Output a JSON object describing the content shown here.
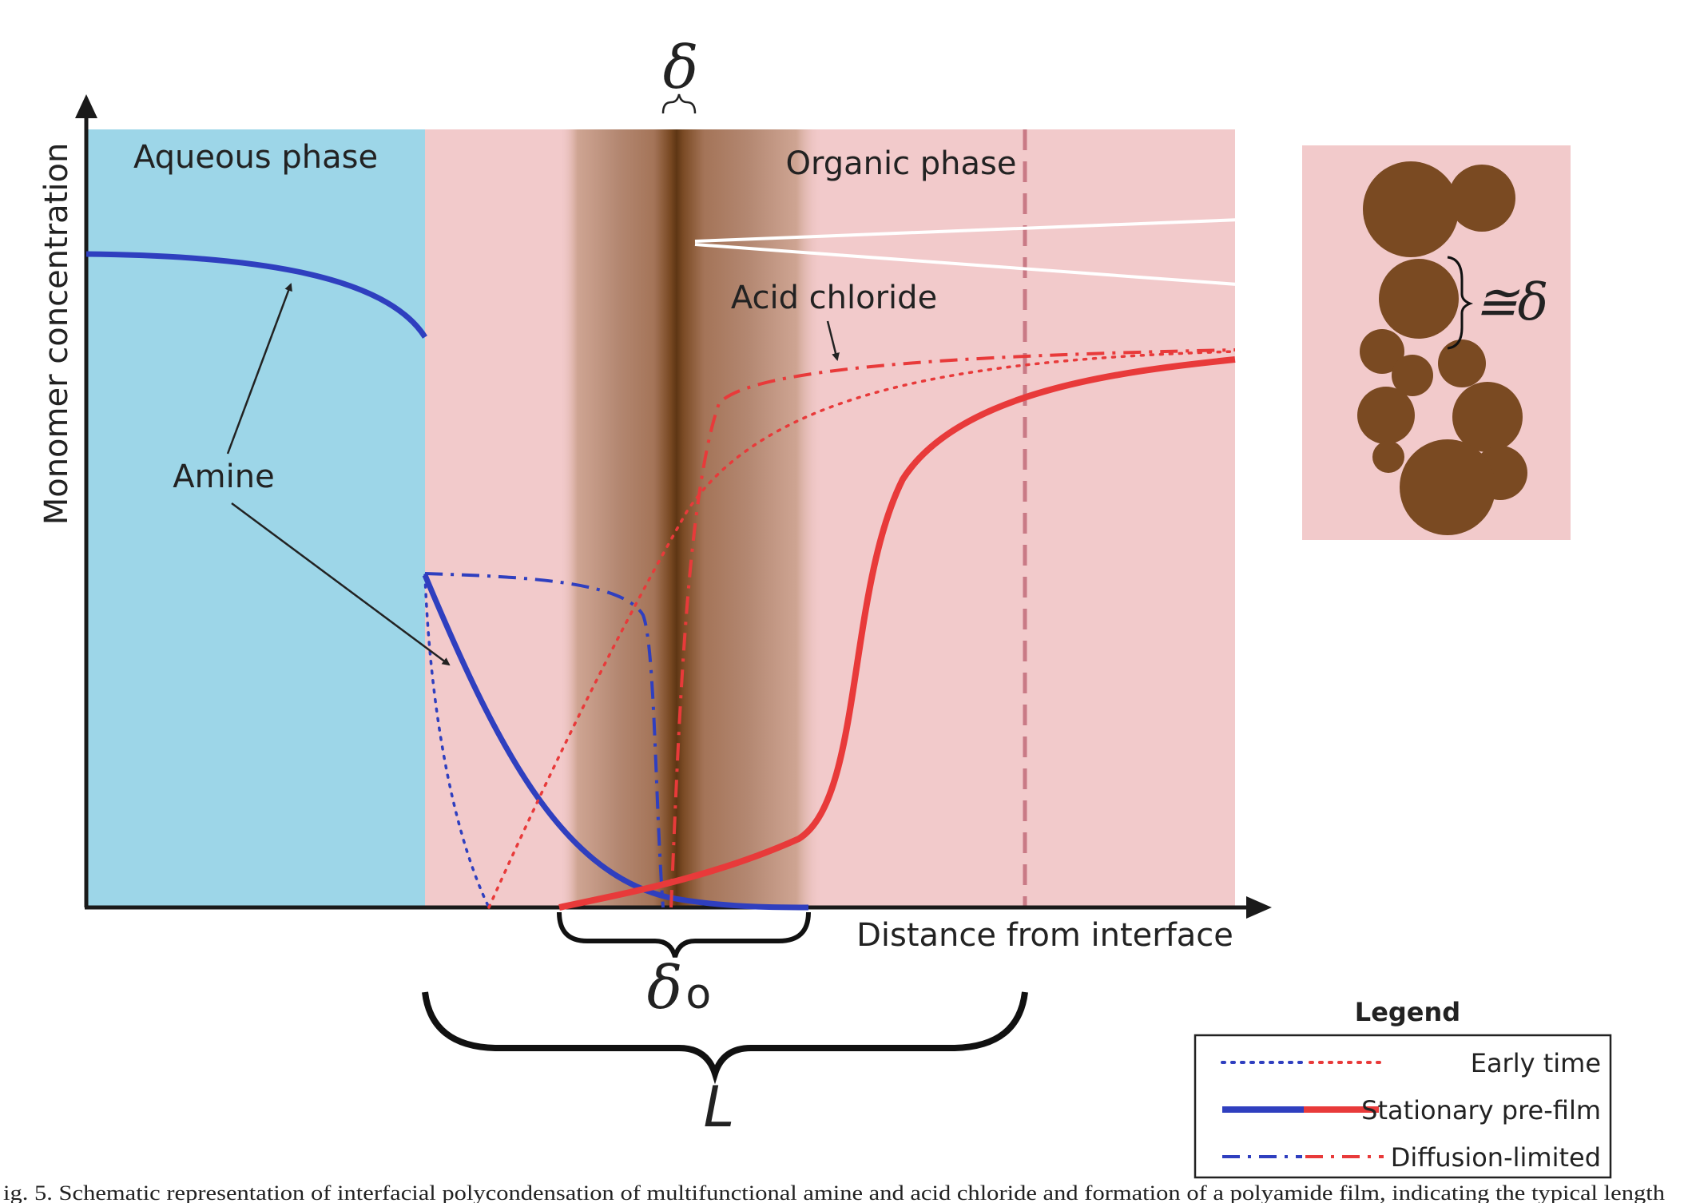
{
  "axes": {
    "y_label": "Monomer concentration",
    "x_label": "Distance from interface"
  },
  "regions": {
    "aqueous": "Aqueous phase",
    "organic": "Organic phase"
  },
  "labels": {
    "amine": "Amine",
    "acid_chloride": "Acid chloride",
    "delta": "δ",
    "delta0": "δ",
    "delta0_sub": "o",
    "length": "L",
    "approx_delta": "≅δ"
  },
  "legend": {
    "title": "Legend",
    "items": [
      {
        "label": "Early time",
        "style": "dotted"
      },
      {
        "label": "Stationary pre-film",
        "style": "solid"
      },
      {
        "label": "Diffusion-limited",
        "style": "dash-dot"
      }
    ]
  },
  "caption": "ig. 5. Schematic representation of interfacial polycondensation of multifunctional amine and acid chloride and formation of a polyamide film, indicating the typical length",
  "colors": {
    "aqueous": "#9dd6e8",
    "organic": "#f2cacb",
    "film_dark": "#6e4420",
    "film_mid": "#a67a5e",
    "particle": "#7a4a22",
    "amine": "#2f3fbf",
    "acid": "#e83a3a"
  }
}
